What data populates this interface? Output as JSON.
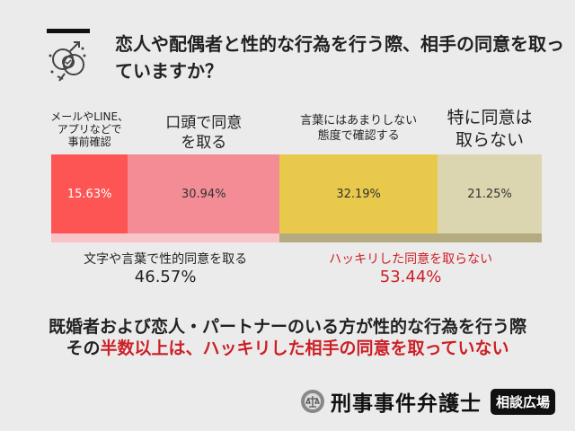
{
  "title": "恋人や配偶者と性的な行為を行う際、相手の同意を取っていますか？",
  "chart_data": {
    "type": "bar",
    "orientation": "horizontal-stacked-100",
    "title": "恋人や配偶者と性的な行為を行う際、相手の同意を取っていますか？",
    "categories": [
      "メールやLINE、アプリなどで事前確認",
      "口頭で同意を取る",
      "言葉にはあまりしない態度で確認する",
      "特に同意は取らない"
    ],
    "values": [
      15.63,
      30.94,
      32.19,
      21.25
    ],
    "labels": [
      "15.63%",
      "30.94%",
      "32.19%",
      "21.25%"
    ],
    "colors": [
      "#fd5454",
      "#f48c96",
      "#e9c94c",
      "#dbd6b0"
    ],
    "groups": [
      {
        "label": "文字や言葉で性的同意を取る",
        "value": 46.57,
        "value_label": "46.57%",
        "color": "#f8c4c8",
        "text_color": "#222222"
      },
      {
        "label": "ハッキリした同意を取らない",
        "value": 53.44,
        "value_label": "53.44%",
        "color": "#b5ab80",
        "text_color": "#cc1f26"
      }
    ]
  },
  "category_lines": [
    [
      "メールやLINE、",
      "アプリなどで",
      "事前確認"
    ],
    [
      "口頭で同意",
      "を取る"
    ],
    [
      "言葉にはあまりしない",
      "態度で確認する"
    ],
    [
      "特に同意は",
      "取らない"
    ]
  ],
  "summary": {
    "line1": "既婚者および恋人・パートナーのいる方が性的な行為を行う際",
    "line2_prefix": "その",
    "line2_highlight": "半数以上は、ハッキリした相手の同意を取っていない"
  },
  "brand": {
    "name": "刑事事件弁護士",
    "badge": "相談広場"
  },
  "accent_red": "#cc1f26"
}
